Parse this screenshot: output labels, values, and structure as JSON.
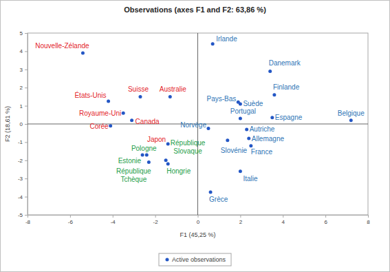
{
  "chart_data": {
    "type": "scatter",
    "title": "Observations (axes F1 and F2: 63,86 %)",
    "x_label": "F1 (45,25 %)",
    "y_label": "F2 (18,61 %)",
    "xlim": [
      -8,
      8
    ],
    "ylim": [
      -5,
      5
    ],
    "xticks": [
      -8,
      -6,
      -4,
      -2,
      0,
      2,
      4,
      6,
      8
    ],
    "yticks": [
      -5,
      -4,
      -3,
      -2,
      -1,
      0,
      1,
      2,
      3,
      4,
      5
    ],
    "grid": false,
    "legend": "bottom",
    "series": [
      {
        "name": "Active observations",
        "color": "#2457c5",
        "marker": "circle",
        "x": [
          -5.4,
          -4.2,
          -2.7,
          -1.3,
          -3.5,
          -3.1,
          -4.1,
          -1.4,
          -2.4,
          -2.6,
          -2.3,
          -1.5,
          -1.4,
          0.7,
          3.4,
          3.6,
          1.9,
          2.0,
          2.0,
          3.5,
          7.2,
          0.5,
          2.3,
          2.4,
          2.5,
          1.4,
          2.0,
          0.6
        ],
        "values": [
          3.9,
          1.25,
          1.5,
          1.5,
          0.6,
          0.2,
          -0.1,
          -1.1,
          -1.7,
          -1.7,
          -2.1,
          -2.0,
          -2.2,
          4.4,
          2.9,
          1.6,
          1.2,
          1.1,
          0.3,
          0.35,
          0.2,
          -0.25,
          -0.3,
          -0.8,
          -1.2,
          -0.9,
          -2.6,
          -3.75
        ],
        "labels": [
          "Nouvelle-Zélande",
          "États-Unis",
          "Suisse",
          "Australie",
          "Royaume-Uni",
          "Canada",
          "Corée",
          "Japon",
          "Pologne",
          "Estonie",
          "République Tchèque",
          "République Slovaque",
          "Hongrie",
          "Irlande",
          "Danemark",
          "Finlande",
          "Pays-Bas",
          "Suède",
          "Portugal",
          "Espagne",
          "Belgique",
          "Norvège",
          "Autriche",
          "Allemagne",
          "France",
          "Slovénie",
          "Italie",
          "Grèce"
        ],
        "colors": [
          "#e3242b",
          "#e3242b",
          "#e3242b",
          "#e3242b",
          "#e3242b",
          "#e3242b",
          "#e3242b",
          "#e3242b",
          "#1e9e4a",
          "#1e9e4a",
          "#1e9e4a",
          "#1e9e4a",
          "#1e9e4a",
          "#2e75b6",
          "#2e75b6",
          "#2e75b6",
          "#2e75b6",
          "#2e75b6",
          "#2e75b6",
          "#2e75b6",
          "#2e75b6",
          "#2e75b6",
          "#2e75b6",
          "#2e75b6",
          "#2e75b6",
          "#2e75b6",
          "#2e75b6",
          "#2e75b6"
        ]
      }
    ]
  }
}
